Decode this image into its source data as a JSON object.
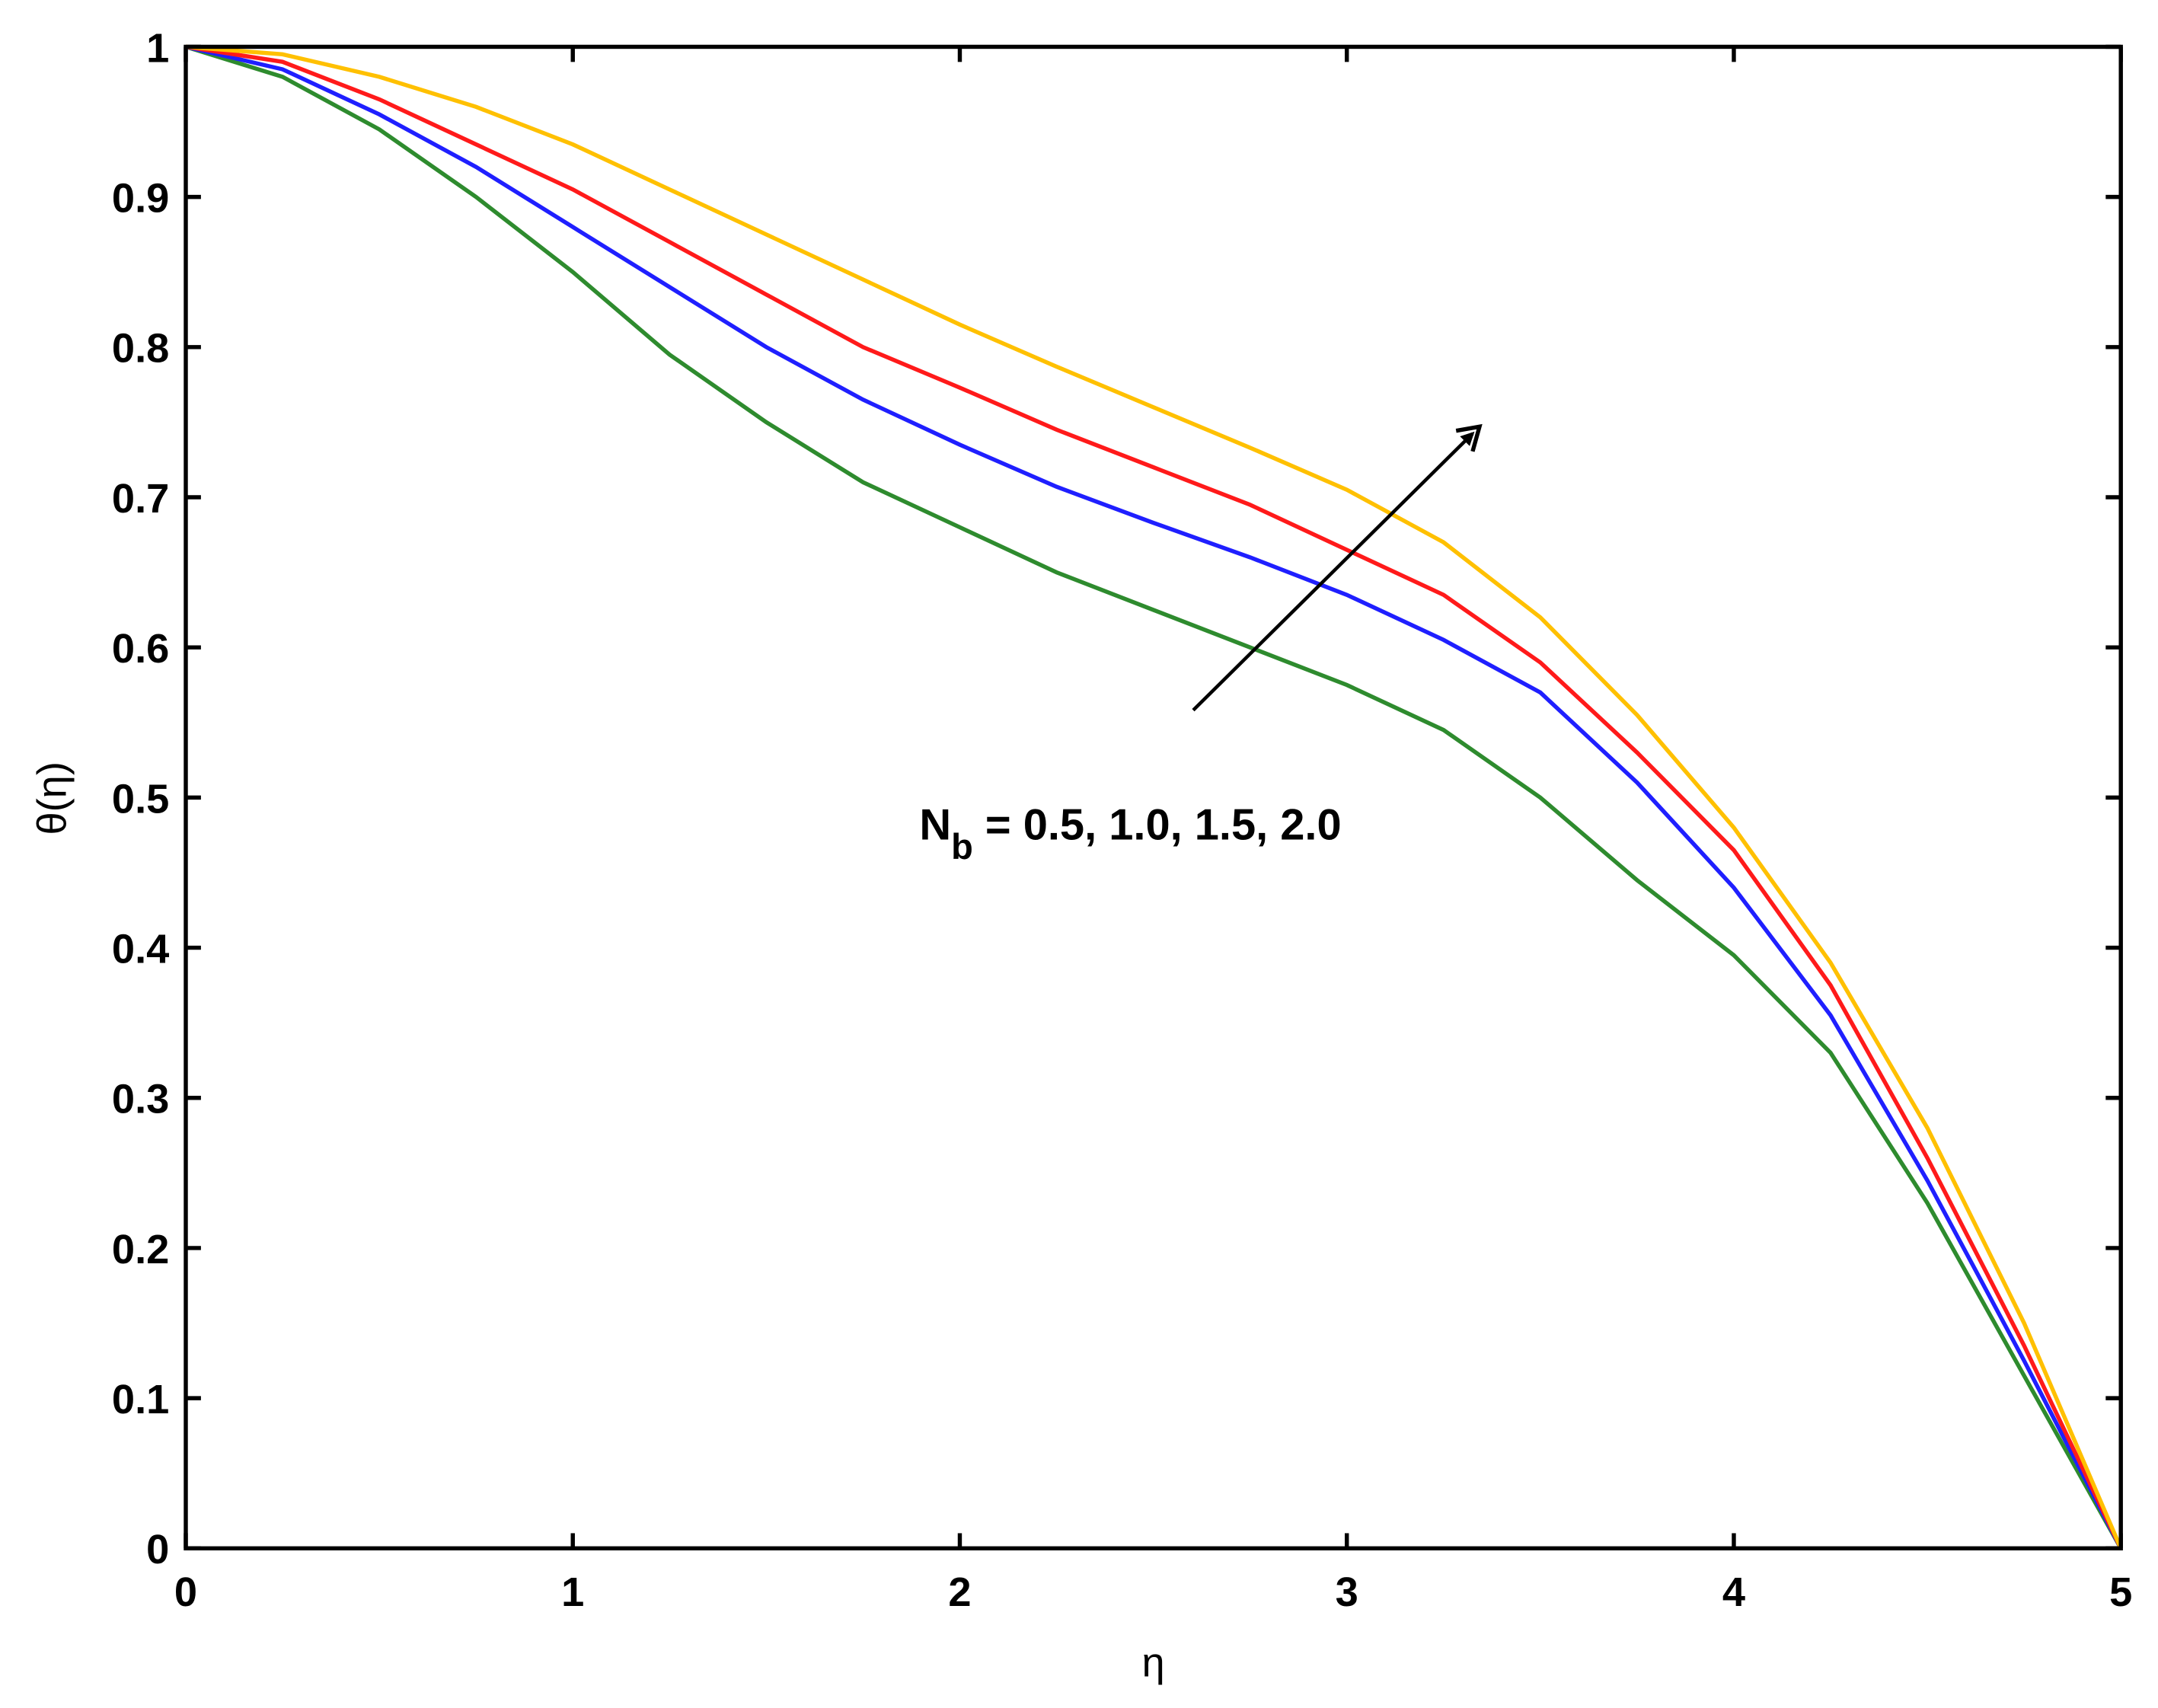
{
  "chart_data": {
    "type": "line",
    "x_label": "η",
    "y_label": "θ(η)",
    "annotation": {
      "symbol": "N",
      "subscript": "b",
      "text": " = 0.5, 1.0, 1.5, 2.0"
    },
    "x": [
      0,
      0.25,
      0.5,
      0.75,
      1,
      1.25,
      1.5,
      1.75,
      2,
      2.25,
      2.5,
      2.75,
      3,
      3.25,
      3.5,
      3.75,
      4,
      4.25,
      4.5,
      4.75,
      5
    ],
    "series": [
      {
        "color": "#2e8b2e",
        "values": [
          1,
          0.98,
          0.945,
          0.9,
          0.85,
          0.795,
          0.75,
          0.71,
          0.68,
          0.65,
          0.625,
          0.6,
          0.575,
          0.545,
          0.5,
          0.445,
          0.395,
          0.33,
          0.23,
          0.115,
          0
        ]
      },
      {
        "color": "#1f1fff",
        "values": [
          1,
          0.985,
          0.955,
          0.92,
          0.88,
          0.84,
          0.8,
          0.765,
          0.735,
          0.707,
          0.683,
          0.66,
          0.635,
          0.605,
          0.57,
          0.51,
          0.44,
          0.355,
          0.245,
          0.125,
          0
        ]
      },
      {
        "color": "#ff1a1a",
        "values": [
          1,
          0.99,
          0.965,
          0.935,
          0.905,
          0.87,
          0.835,
          0.8,
          0.773,
          0.745,
          0.72,
          0.695,
          0.665,
          0.635,
          0.59,
          0.53,
          0.465,
          0.375,
          0.26,
          0.135,
          0
        ]
      },
      {
        "color": "#ffc000",
        "values": [
          1,
          0.995,
          0.98,
          0.96,
          0.935,
          0.905,
          0.875,
          0.845,
          0.815,
          0.787,
          0.76,
          0.733,
          0.705,
          0.67,
          0.62,
          0.555,
          0.48,
          0.39,
          0.28,
          0.15,
          0
        ]
      }
    ],
    "xlim": [
      0,
      5
    ],
    "xticks": [
      0,
      1,
      2,
      3,
      4,
      5
    ],
    "ylim": [
      0,
      1
    ],
    "yticks": [
      0,
      0.1,
      0.2,
      0.3,
      0.4,
      0.5,
      0.6,
      0.7,
      0.8,
      0.9,
      1
    ],
    "grid": false
  }
}
